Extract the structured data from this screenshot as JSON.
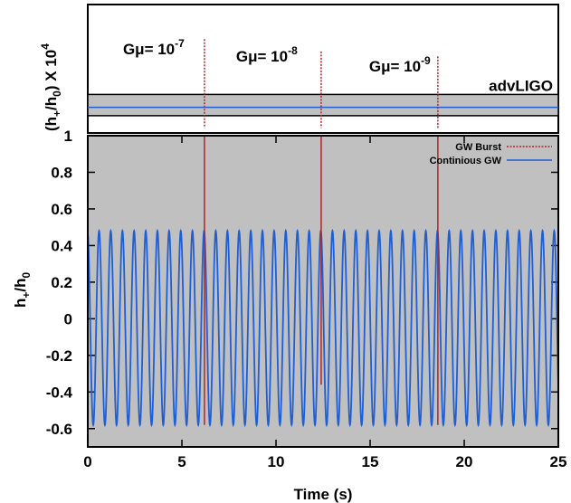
{
  "chart_data": [
    {
      "panel": "top",
      "type": "line",
      "ylabel_parts": {
        "open": "(h",
        "sub1": "+",
        "mid": "/h",
        "sub2": "0",
        "close": ") X 10",
        "sup": "4"
      },
      "band_label": "advLIGO",
      "annotations": [
        {
          "label_base": "Gμ= 10",
          "label_exp": "-7",
          "x": 6.2
        },
        {
          "label_base": "Gμ= 10",
          "label_exp": "-8",
          "x": 12.4
        },
        {
          "label_base": "Gμ= 10",
          "label_exp": "-9",
          "x": 18.6
        }
      ],
      "ytick_labels": [
        "1"
      ],
      "spikes": [
        {
          "x": 6.2,
          "top": 1.9,
          "bottom": 0.1
        },
        {
          "x": 12.4,
          "top": 1.65,
          "bottom": 0.1
        },
        {
          "x": 18.6,
          "top": 1.55,
          "bottom": 0.1
        }
      ],
      "band": {
        "top": 0.78,
        "bottom": 0.35
      },
      "line_level": 0.52,
      "ylim": [
        0,
        2.6
      ]
    },
    {
      "panel": "bottom",
      "type": "line",
      "xlabel": "Time (s)",
      "ylabel_parts": {
        "a": "h",
        "sub1": "+",
        "b": "/h",
        "sub2": "0"
      },
      "xlim": [
        0,
        25
      ],
      "ylim": [
        -0.7,
        1.0
      ],
      "xticks": [
        0,
        5,
        10,
        15,
        20,
        25
      ],
      "xtick_labels": [
        "0",
        "5",
        "10",
        "15",
        "20",
        "25"
      ],
      "yticks": [
        -0.6,
        -0.4,
        -0.2,
        0,
        0.2,
        0.4,
        0.6,
        0.8
      ],
      "ytick_labels": [
        "-0.6",
        "-0.4",
        "-0.2",
        "0",
        "0.2",
        "0.4",
        "0.6",
        "0.8"
      ],
      "legend": {
        "position": "top-right",
        "entries": [
          "GW Burst",
          "Continious GW"
        ]
      },
      "series": [
        {
          "name": "Continious GW",
          "kind": "sinusoid",
          "offset": -0.05,
          "amplitude": 0.53,
          "period": 0.62,
          "first_peak_x": 0.6,
          "end_value_at_x25": -0.36,
          "color": "#1e5fd6"
        },
        {
          "name": "GW Burst",
          "kind": "vertical_spikes",
          "x": [
            6.2,
            12.4,
            18.6
          ],
          "bottom": [
            -0.58,
            -0.36,
            -0.58
          ],
          "color": "#b0242a"
        }
      ]
    }
  ],
  "colors": {
    "panel_fill": "#c0c0c0",
    "continuous": "#1e5fd6",
    "burst": "#b0242a",
    "axis": "#000000"
  }
}
